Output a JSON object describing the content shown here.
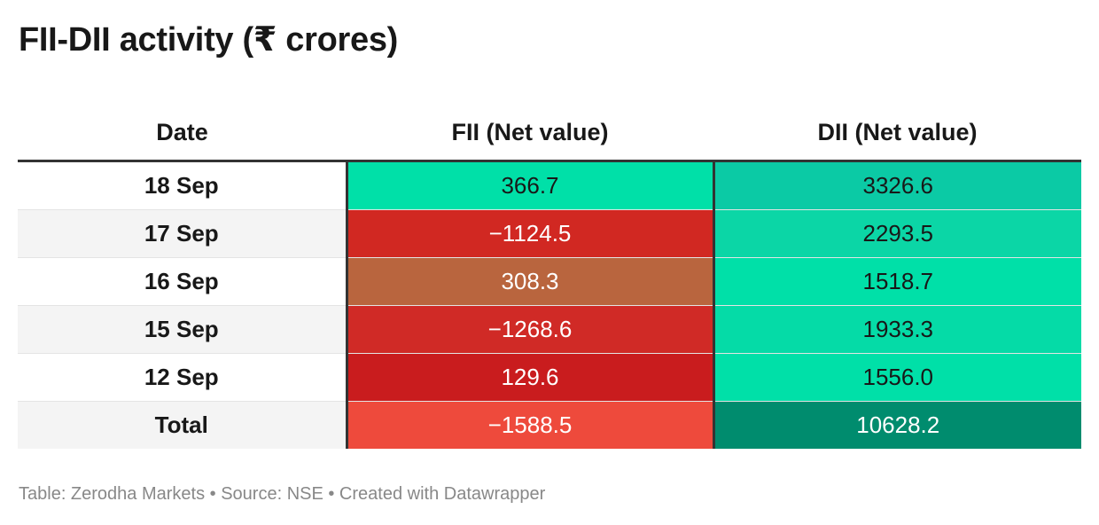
{
  "title": "FII-DII activity (₹ crores)",
  "footer": "Table: Zerodha Markets • Source: NSE • Created with Datawrapper",
  "chart_data": {
    "type": "table",
    "title": "FII-DII activity (₹ crores)",
    "columns": [
      "Date",
      "FII (Net value)",
      "DII (Net value)"
    ],
    "rows": [
      {
        "date": "18 Sep",
        "fii": "366.7",
        "dii": "3326.6",
        "fii_color": "#00e0a8",
        "dii_color": "#0bcaa5",
        "fii_text": "#181818",
        "dii_text": "#181818"
      },
      {
        "date": "17 Sep",
        "fii": "−1124.5",
        "dii": "2293.5",
        "fii_color": "#d12822",
        "dii_color": "#0bd6a6",
        "fii_text": "#ffffff",
        "dii_text": "#181818"
      },
      {
        "date": "16 Sep",
        "fii": "308.3",
        "dii": "1518.7",
        "fii_color": "#b9653e",
        "dii_color": "#00e0a8",
        "fii_text": "#ffffff",
        "dii_text": "#181818"
      },
      {
        "date": "15 Sep",
        "fii": "−1268.6",
        "dii": "1933.3",
        "fii_color": "#d02a26",
        "dii_color": "#05dba7",
        "fii_text": "#ffffff",
        "dii_text": "#181818"
      },
      {
        "date": "12 Sep",
        "fii": "129.6",
        "dii": "1556.0",
        "fii_color": "#c91c1e",
        "dii_color": "#00e0a8",
        "fii_text": "#ffffff",
        "dii_text": "#181818"
      },
      {
        "date": "Total",
        "fii": "−1588.5",
        "dii": "10628.2",
        "fii_color": "#ee4a3c",
        "dii_color": "#008c6e",
        "fii_text": "#ffffff",
        "dii_text": "#ffffff"
      }
    ]
  }
}
